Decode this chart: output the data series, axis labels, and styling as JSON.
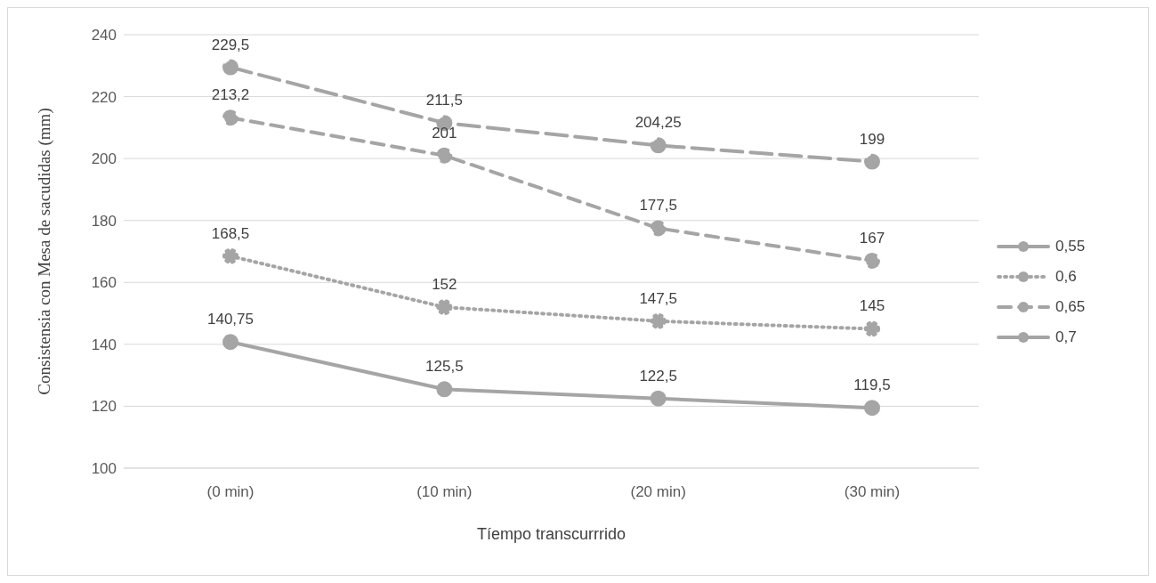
{
  "chart_data": {
    "type": "line",
    "xlabel": "Tíempo transcurrrido",
    "ylabel": "Consistensia con Mesa de sacudidas (mm)",
    "categories": [
      "(0 min)",
      "(10 min)",
      "(20 min)",
      "(30 min)"
    ],
    "series": [
      {
        "name": "0,55",
        "color": "#a5a5a5",
        "line_style": "solid",
        "values": [
          140.75,
          125.5,
          122.5,
          119.5
        ],
        "value_labels": [
          "140,75",
          "125,5",
          "122,5",
          "119,5"
        ]
      },
      {
        "name": "0,6",
        "color": "#a5a5a5",
        "line_style": "dotted",
        "values": [
          168.5,
          152,
          147.5,
          145
        ],
        "value_labels": [
          "168,5",
          "152",
          "147,5",
          "145"
        ]
      },
      {
        "name": "0,65",
        "color": "#a5a5a5",
        "line_style": "dashed",
        "values": [
          213.2,
          201,
          177.5,
          167
        ],
        "value_labels": [
          "213,2",
          "201",
          "177,5",
          "167"
        ]
      },
      {
        "name": "0,7",
        "color": "#a5a5a5",
        "line_style": "dashed",
        "values": [
          229.5,
          211.5,
          204.25,
          199
        ],
        "value_labels": [
          "229,5",
          "211,5",
          "204,25",
          "199"
        ]
      }
    ],
    "ylim": [
      100,
      240
    ],
    "yticks": [
      100,
      120,
      140,
      160,
      180,
      200,
      220,
      240
    ],
    "grid": "y",
    "legend": "right",
    "marker": "circle"
  }
}
